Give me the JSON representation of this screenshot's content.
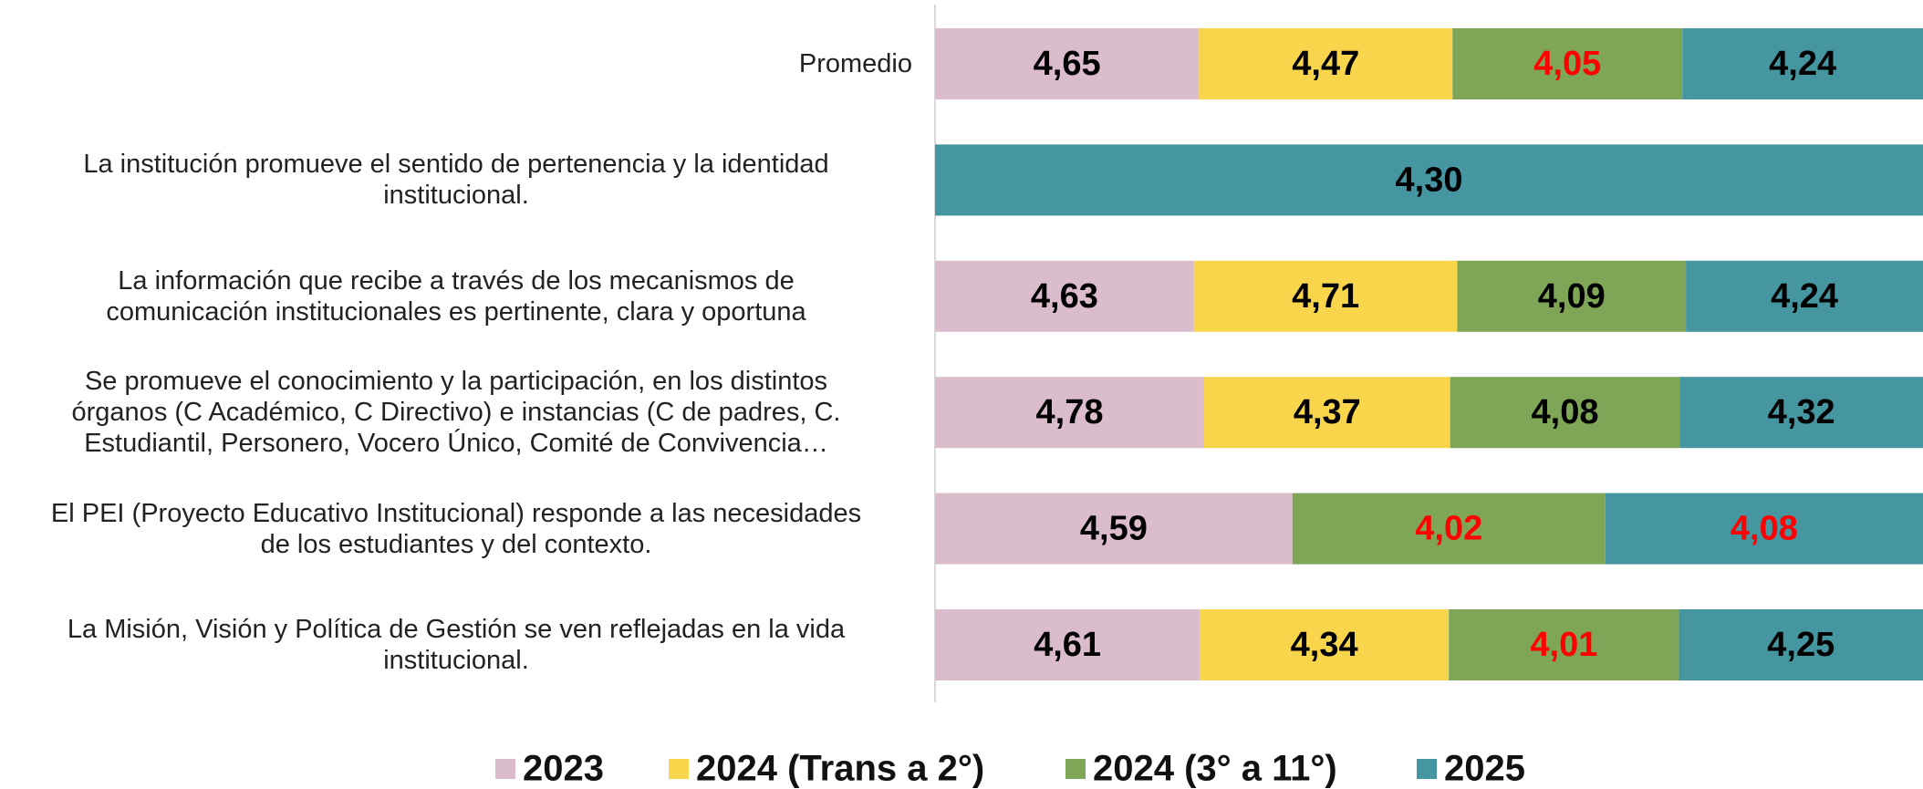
{
  "chart_data": {
    "type": "bar",
    "orientation": "horizontal",
    "stacked": "percent",
    "categories": [
      "Promedio",
      "La institución promueve el sentido de pertenencia y la identidad\ninstitucional.",
      "La información que recibe a través de los mecanismos de\ncomunicación institucionales es pertinente, clara y oportuna",
      "Se promueve el conocimiento y la participación, en los distintos\nórganos (C Académico, C Directivo) e instancias (C de padres, C.\nEstudiantil, Personero, Vocero Único, Comité de Convivencia…",
      "El PEI (Proyecto Educativo Institucional) responde a las necesidades\nde los estudiantes y del contexto.",
      "La Misión, Visión y Política de Gestión se ven reflejadas en la vida\ninstitucional."
    ],
    "series": [
      {
        "name": "2023",
        "color": "#dbbccd",
        "values": [
          4.65,
          null,
          4.63,
          4.78,
          4.59,
          4.61
        ],
        "value_labels": [
          "4,65",
          null,
          "4,63",
          "4,78",
          "4,59",
          "4,61"
        ],
        "label_colors": [
          "#000000",
          null,
          "#000000",
          "#000000",
          "#000000",
          "#000000"
        ]
      },
      {
        "name": "2024 (Trans a 2°)",
        "color": "#f8d54a",
        "values": [
          4.47,
          null,
          4.71,
          4.37,
          null,
          4.34
        ],
        "value_labels": [
          "4,47",
          null,
          "4,71",
          "4,37",
          null,
          "4,34"
        ],
        "label_colors": [
          "#000000",
          null,
          "#000000",
          "#000000",
          null,
          "#000000"
        ]
      },
      {
        "name": "2024 (3° a 11°)",
        "color": "#7ea656",
        "values": [
          4.05,
          null,
          4.09,
          4.08,
          4.02,
          4.01
        ],
        "value_labels": [
          "4,05",
          null,
          "4,09",
          "4,08",
          "4,02",
          "4,01"
        ],
        "label_colors": [
          "#ff0000",
          null,
          "#000000",
          "#000000",
          "#ff0000",
          "#ff0000"
        ]
      },
      {
        "name": "2025",
        "color": "#4596a0",
        "values": [
          4.24,
          4.3,
          4.24,
          4.32,
          4.08,
          4.25
        ],
        "value_labels": [
          "4,24",
          "4,30",
          "4,24",
          "4,32",
          "4,08",
          "4,25"
        ],
        "label_colors": [
          "#000000",
          "#000000",
          "#000000",
          "#000000",
          "#ff0000",
          "#000000"
        ]
      }
    ],
    "legend": "bottom"
  }
}
